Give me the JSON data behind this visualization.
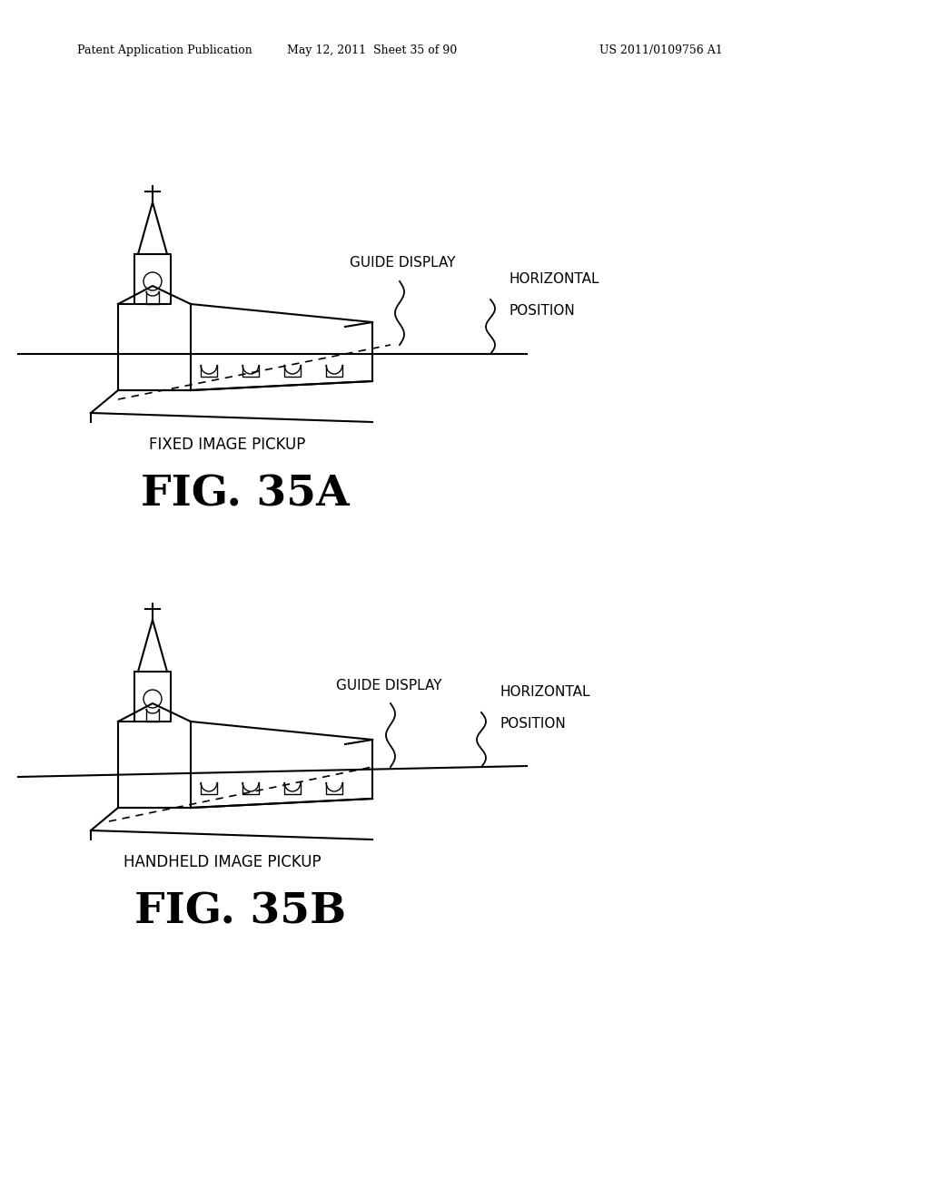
{
  "bg_color": "#ffffff",
  "header_left": "Patent Application Publication",
  "header_mid": "May 12, 2011  Sheet 35 of 90",
  "header_right": "US 2011/0109756 A1",
  "fig_a_label": "FIG. 35A",
  "fig_b_label": "FIG. 35B",
  "caption_a": "FIXED IMAGE PICKUP",
  "caption_b": "HANDHELD IMAGE PICKUP",
  "guide_display": "GUIDE DISPLAY",
  "horiz_pos_line1": "HORIZONTAL",
  "horiz_pos_line2": "POSITION"
}
